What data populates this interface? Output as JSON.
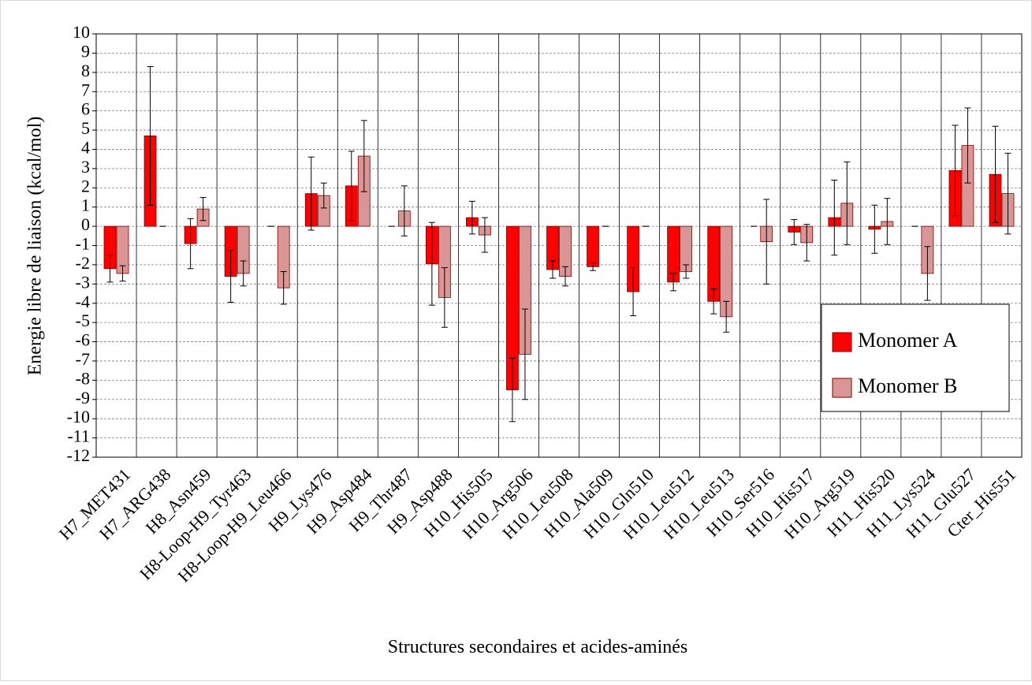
{
  "chart_data": {
    "type": "bar",
    "y_label": "Energie libre de liaison (kcal/mol)",
    "x_label": "Structures secondaires et acides-aminés",
    "categories": [
      "H7_MET431",
      "H7_ARG438",
      "H8_Asn459",
      "H8-Loop-H9_Tyr463",
      "H8-Loop-H9_Leu466",
      "H9_Lys476",
      "H9_Asp484",
      "H9_Thr487",
      "H9_Asp488",
      "H10_His505",
      "H10_Arg506",
      "H10_Leu508",
      "H10_Ala509",
      "H10_Gln510",
      "H10_Leu512",
      "H10_Leu513",
      "H10_Ser516",
      "H10_His517",
      "H10_Arg519",
      "H11_His520",
      "H11_Lys524",
      "H11_Glu527",
      "Cter_His551"
    ],
    "series": [
      {
        "name": "Monomer A",
        "color": "#ff0000",
        "values": [
          -2.2,
          4.7,
          -0.9,
          -2.6,
          0,
          1.7,
          2.1,
          0,
          -1.95,
          0.45,
          -8.5,
          -2.25,
          -2.1,
          -3.4,
          -2.9,
          -3.9,
          0,
          -0.3,
          0.45,
          -0.15,
          0,
          2.9,
          2.7
        ],
        "errors": [
          0.7,
          3.6,
          1.3,
          1.35,
          0,
          1.9,
          1.8,
          0,
          2.15,
          0.85,
          1.65,
          0.45,
          0.2,
          1.25,
          0.45,
          0.65,
          0,
          0.65,
          1.95,
          1.25,
          0,
          2.35,
          2.5
        ]
      },
      {
        "name": "Monomer B",
        "color": "#d99694",
        "values": [
          -2.45,
          0,
          0.9,
          -2.45,
          -3.2,
          1.6,
          3.65,
          0.8,
          -3.7,
          -0.45,
          -6.65,
          -2.6,
          0,
          0,
          -2.35,
          -4.7,
          -0.8,
          -0.85,
          1.2,
          0.25,
          -2.45,
          4.2,
          1.7
        ],
        "errors": [
          0.4,
          0,
          0.6,
          0.65,
          0.85,
          0.65,
          1.85,
          1.3,
          1.55,
          0.9,
          2.35,
          0.5,
          0,
          0,
          0.35,
          0.8,
          2.2,
          0.95,
          2.15,
          1.2,
          1.4,
          1.95,
          2.1
        ]
      }
    ],
    "ylim": [
      -12,
      10
    ],
    "yticks": [
      -12,
      -11,
      -10,
      -9,
      -8,
      -7,
      -6,
      -5,
      -4,
      -3,
      -2,
      -1,
      0,
      1,
      2,
      3,
      4,
      5,
      6,
      7,
      8,
      9,
      10
    ],
    "grid": true,
    "legend": "right"
  }
}
